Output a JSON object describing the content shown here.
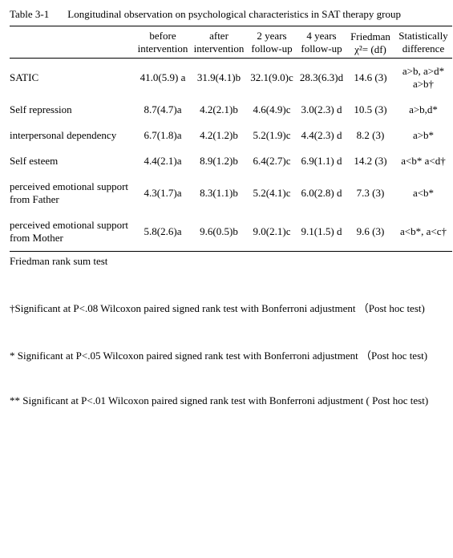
{
  "table_label": "Table 3-1",
  "table_title": "Longitudinal observation on psychological characteristics in SAT therapy group",
  "headers": {
    "rowhead": "",
    "before": "before intervention",
    "after": "after intervention",
    "y2": "2 years follow-up",
    "y4": "4 years follow-up",
    "friedman": "Friedman　χ²= (df)",
    "diff": "Statistically difference"
  },
  "rows": [
    {
      "label": "SATIC",
      "before": "41.0(5.9) a",
      "after": "31.9(4.1)b",
      "y2": "32.1(9.0)c",
      "y4": "28.3(6.3)d",
      "friedman": "14.6 (3)",
      "diff": "a>b, a>d* a>b†"
    },
    {
      "label": "Self repression",
      "before": "8.7(4.7)a",
      "after": "4.2(2.1)b",
      "y2": "4.6(4.9)c",
      "y4": "3.0(2.3) d",
      "friedman": "10.5 (3)",
      "diff": "a>b,d*"
    },
    {
      "label": "interpersonal dependency",
      "before": "6.7(1.8)a",
      "after": "4.2(1.2)b",
      "y2": "5.2(1.9)c",
      "y4": "4.4(2.3) d",
      "friedman": "8.2 (3)",
      "diff": "a>b*"
    },
    {
      "label": "Self esteem",
      "before": "4.4(2.1)a",
      "after": "8.9(1.2)b",
      "y2": "6.4(2.7)c",
      "y4": "6.9(1.1) d",
      "friedman": "14.2 (3)",
      "diff": "a<b*  a<d†"
    },
    {
      "label": "perceived emotional support from Father",
      "before": "4.3(1.7)a",
      "after": "8.3(1.1)b",
      "y2": "5.2(4.1)c",
      "y4": "6.0(2.8) d",
      "friedman": "7.3 (3)",
      "diff": "a<b*"
    },
    {
      "label": "perceived emotional support from Mother",
      "before": "5.8(2.6)a",
      "after": "9.6(0.5)b",
      "y2": "9.0(2.1)c",
      "y4": "9.1(1.5) d",
      "friedman": "9.6 (3)",
      "diff": "a<b*, a<c†"
    }
  ],
  "footnote": "Friedman rank sum test",
  "notes": [
    "†Significant at P<.08  Wilcoxon paired signed rank test with Bonferroni adjustment （Post hoc test)",
    "* Significant at P<.05  Wilcoxon paired signed rank test with Bonferroni adjustment （Post hoc test)",
    "**  Significant at P<.01 Wilcoxon paired signed rank test with Bonferroni adjustment ( Post hoc test)"
  ]
}
